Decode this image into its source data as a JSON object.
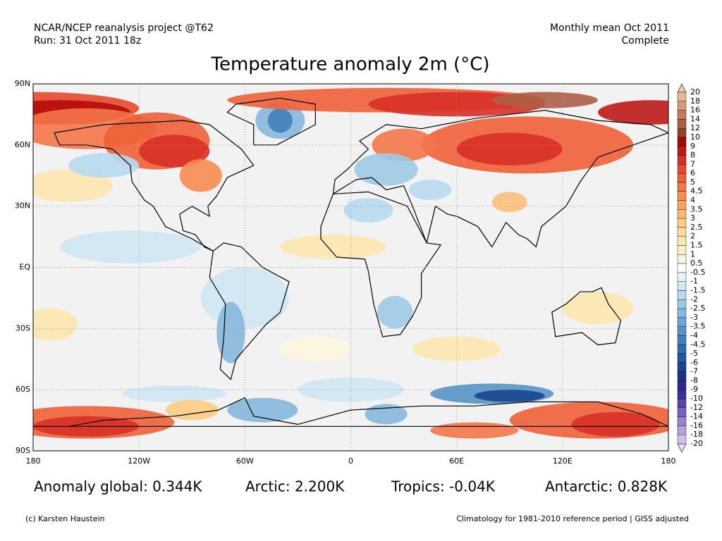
{
  "header": {
    "source": "NCAR/NCEP reanalysis project @T62",
    "run": "Run: 31 Oct 2011 18z",
    "period": "Monthly mean Oct 2011",
    "status": "Complete",
    "title": "Temperature anomaly 2m (°C)"
  },
  "map": {
    "lat_labels": [
      "90N",
      "60N",
      "30N",
      "EQ",
      "30S",
      "60S",
      "90S"
    ],
    "lon_labels": [
      "180",
      "120W",
      "60W",
      "0",
      "60E",
      "120E",
      "180"
    ]
  },
  "colorbar": {
    "labels": [
      "20",
      "18",
      "16",
      "14",
      "12",
      "10",
      "9",
      "8",
      "7",
      "6",
      "5",
      "4.5",
      "4",
      "3.5",
      "3",
      "2.5",
      "2",
      "1.5",
      "1",
      "0.5",
      "-0.5",
      "-1",
      "-1.5",
      "-2",
      "-2.5",
      "-3",
      "-3.5",
      "-4",
      "-4.5",
      "-5",
      "-6",
      "-7",
      "-8",
      "-9",
      "-10",
      "-12",
      "-14",
      "-16",
      "-18",
      "-20"
    ]
  },
  "stats": [
    "Anomaly global: 0.344K",
    "Arctic: 2.200K",
    "Tropics: -0.04K",
    "Antarctic: 0.828K"
  ],
  "footer": {
    "credit": "(c) Karsten Haustein",
    "note": "Climatology for 1981-2010 reference period | GISS adjusted"
  }
}
